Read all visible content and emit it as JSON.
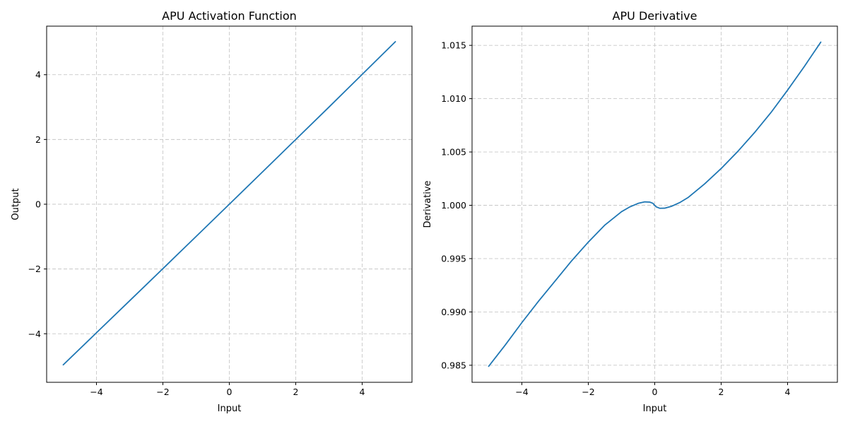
{
  "chart_data": [
    {
      "type": "line",
      "title": "APU Activation Function",
      "xlabel": "Input",
      "ylabel": "Output",
      "xlim": [
        -5.5,
        5.5
      ],
      "ylim": [
        -5.5,
        5.5
      ],
      "xticks": [
        -4,
        -2,
        0,
        2,
        4
      ],
      "xtick_labels": [
        "−4",
        "−2",
        "0",
        "2",
        "4"
      ],
      "yticks": [
        -4,
        -2,
        0,
        2,
        4
      ],
      "ytick_labels": [
        "−4",
        "−2",
        "0",
        "2",
        "4"
      ],
      "grid": true,
      "color": "#1f77b4",
      "series": [
        {
          "x": [
            -5,
            -4,
            -3,
            -2,
            -1,
            0,
            1,
            2,
            3,
            4,
            5
          ],
          "y": [
            -4.96,
            -3.97,
            -2.98,
            -1.99,
            -0.995,
            0,
            0.998,
            2.0,
            3.0,
            4.01,
            5.02
          ]
        }
      ]
    },
    {
      "type": "line",
      "title": "APU Derivative",
      "xlabel": "Input",
      "ylabel": "Derivative",
      "xlim": [
        -5.5,
        5.5
      ],
      "ylim": [
        0.9834,
        1.0168
      ],
      "xticks": [
        -4,
        -2,
        0,
        2,
        4
      ],
      "xtick_labels": [
        "−4",
        "−2",
        "0",
        "2",
        "4"
      ],
      "yticks": [
        0.985,
        0.99,
        0.995,
        1.0,
        1.005,
        1.01,
        1.015
      ],
      "ytick_labels": [
        "0.985",
        "0.990",
        "0.995",
        "1.000",
        "1.005",
        "1.010",
        "1.015"
      ],
      "grid": true,
      "color": "#1f77b4",
      "series": [
        {
          "x": [
            -5,
            -4.5,
            -4,
            -3.5,
            -3,
            -2.5,
            -2,
            -1.5,
            -1,
            -0.75,
            -0.5,
            -0.3,
            -0.15,
            -0.05,
            0,
            0.05,
            0.15,
            0.3,
            0.5,
            0.75,
            1,
            1.5,
            2,
            2.5,
            3,
            3.5,
            4,
            4.5,
            5
          ],
          "y": [
            0.9849,
            0.9869,
            0.989,
            0.991,
            0.9929,
            0.9948,
            0.99655,
            0.99815,
            0.9994,
            0.99985,
            1.00018,
            1.00032,
            1.0003,
            1.00018,
            0.99998,
            0.99985,
            0.99972,
            0.99973,
            0.9999,
            1.00025,
            1.00072,
            1.002,
            1.00345,
            1.00505,
            1.0068,
            1.0087,
            1.0108,
            1.013,
            1.0153
          ]
        }
      ]
    }
  ]
}
